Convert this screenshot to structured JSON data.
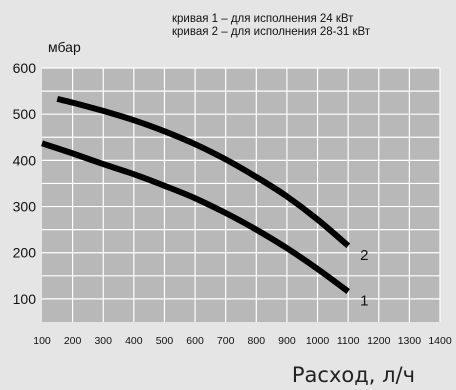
{
  "chart_data": {
    "type": "line",
    "xlabel": "Расход, л/ч",
    "ylabel": "мбар",
    "xlim": [
      100,
      1400
    ],
    "ylim": [
      50,
      600
    ],
    "x_ticks": [
      100,
      200,
      300,
      400,
      500,
      600,
      700,
      800,
      900,
      1000,
      1100,
      1200,
      1300,
      1400
    ],
    "y_ticks": [
      100,
      200,
      300,
      400,
      500,
      600
    ],
    "grid": true,
    "legend": [
      "кривая 1 – для исполнения 24 кВт",
      "кривая 2 – для исполнения 28-31 кВт"
    ],
    "series": [
      {
        "name": "1",
        "x": [
          100,
          200,
          300,
          400,
          500,
          600,
          700,
          800,
          900,
          1000,
          1100
        ],
        "y": [
          437,
          415,
          392,
          370,
          345,
          318,
          286,
          250,
          210,
          165,
          116
        ]
      },
      {
        "name": "2",
        "x": [
          150,
          200,
          300,
          400,
          500,
          600,
          700,
          800,
          900,
          1000,
          1100
        ],
        "y": [
          533,
          525,
          507,
          487,
          463,
          435,
          402,
          364,
          322,
          272,
          215
        ]
      }
    ],
    "colors": {
      "background": "#e5e5e5",
      "plot": "#b8b8b8",
      "grid": "#ffffff",
      "curve": "#000000"
    }
  }
}
